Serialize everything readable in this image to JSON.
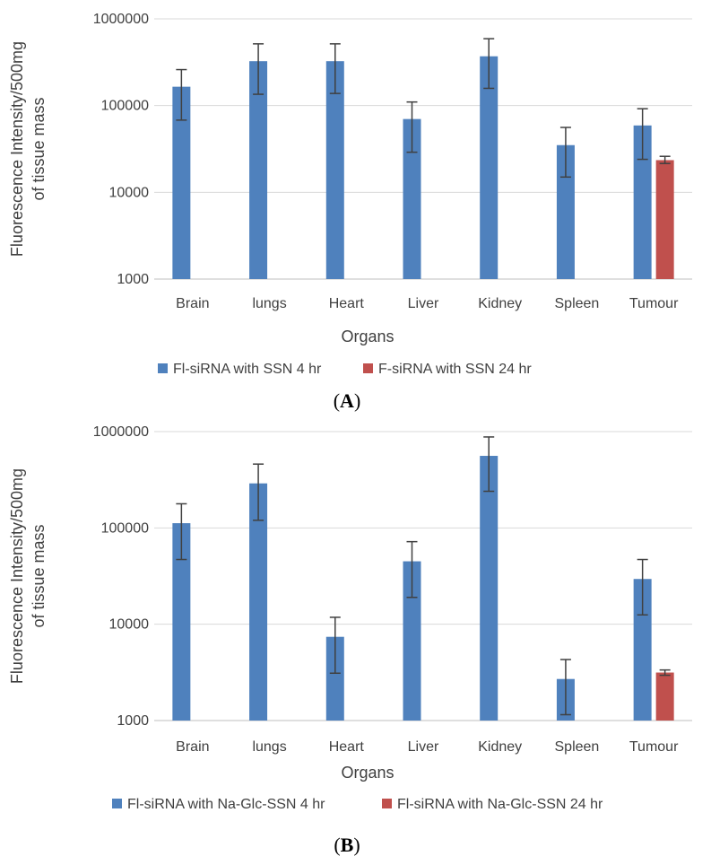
{
  "chart_data": [
    {
      "type": "bar",
      "panel_label": "A",
      "title": "",
      "xlabel": "Organs",
      "ylabel_line1": "Fluorescence Intensity/500mg",
      "ylabel_line2": "of tissue mass",
      "yscale": "log",
      "ylim": [
        1000,
        1000000
      ],
      "yticks": [
        "1000000",
        "100000",
        "10000",
        "1000"
      ],
      "ytick_values": [
        1000000,
        100000,
        10000,
        1000
      ],
      "categories": [
        "Brain",
        "lungs",
        "Heart",
        "Liver",
        "Kidney",
        "Spleen",
        "Tumour"
      ],
      "series": [
        {
          "name": "Fl-siRNA with SSN 4 hr",
          "color": "#4f81bd",
          "values": [
            165000,
            325000,
            325000,
            70000,
            370000,
            35000,
            59000
          ],
          "err_low": [
            68000,
            135000,
            138000,
            29000,
            158000,
            15000,
            24000
          ],
          "err_high": [
            260000,
            515000,
            515000,
            110000,
            590000,
            56000,
            92000
          ]
        },
        {
          "name": "F-siRNA with SSN 24 hr",
          "color": "#c0504d",
          "values": [
            null,
            null,
            null,
            null,
            null,
            null,
            23500
          ],
          "err_low": [
            null,
            null,
            null,
            null,
            null,
            null,
            21500
          ],
          "err_high": [
            null,
            null,
            null,
            null,
            null,
            null,
            26000
          ]
        }
      ],
      "legend_position": "bottom"
    },
    {
      "type": "bar",
      "panel_label": "B",
      "title": "",
      "xlabel": "Organs",
      "ylabel_line1": "Fluorescence Intensity/500mg",
      "ylabel_line2": "of tissue mass",
      "yscale": "log",
      "ylim": [
        1000,
        1000000
      ],
      "yticks": [
        "1000000",
        "100000",
        "10000",
        "1000"
      ],
      "ytick_values": [
        1000000,
        100000,
        10000,
        1000
      ],
      "categories": [
        "Brain",
        "lungs",
        "Heart",
        "Liver",
        "Kidney",
        "Spleen",
        "Tumour"
      ],
      "series": [
        {
          "name": "Fl-siRNA with Na-Glc-SSN 4 hr",
          "color": "#4f81bd",
          "values": [
            112000,
            290000,
            7400,
            45000,
            560000,
            2700,
            29500
          ],
          "err_low": [
            47000,
            120000,
            3100,
            19000,
            240000,
            1150,
            12500
          ],
          "err_high": [
            178000,
            460000,
            11800,
            72000,
            880000,
            4300,
            47000
          ]
        },
        {
          "name": "Fl-siRNA with Na-Glc-SSN 24 hr",
          "color": "#c0504d",
          "values": [
            null,
            null,
            null,
            null,
            null,
            null,
            3150
          ],
          "err_low": [
            null,
            null,
            null,
            null,
            null,
            null,
            2950
          ],
          "err_high": [
            null,
            null,
            null,
            null,
            null,
            null,
            3350
          ]
        }
      ],
      "legend_position": "bottom"
    }
  ]
}
